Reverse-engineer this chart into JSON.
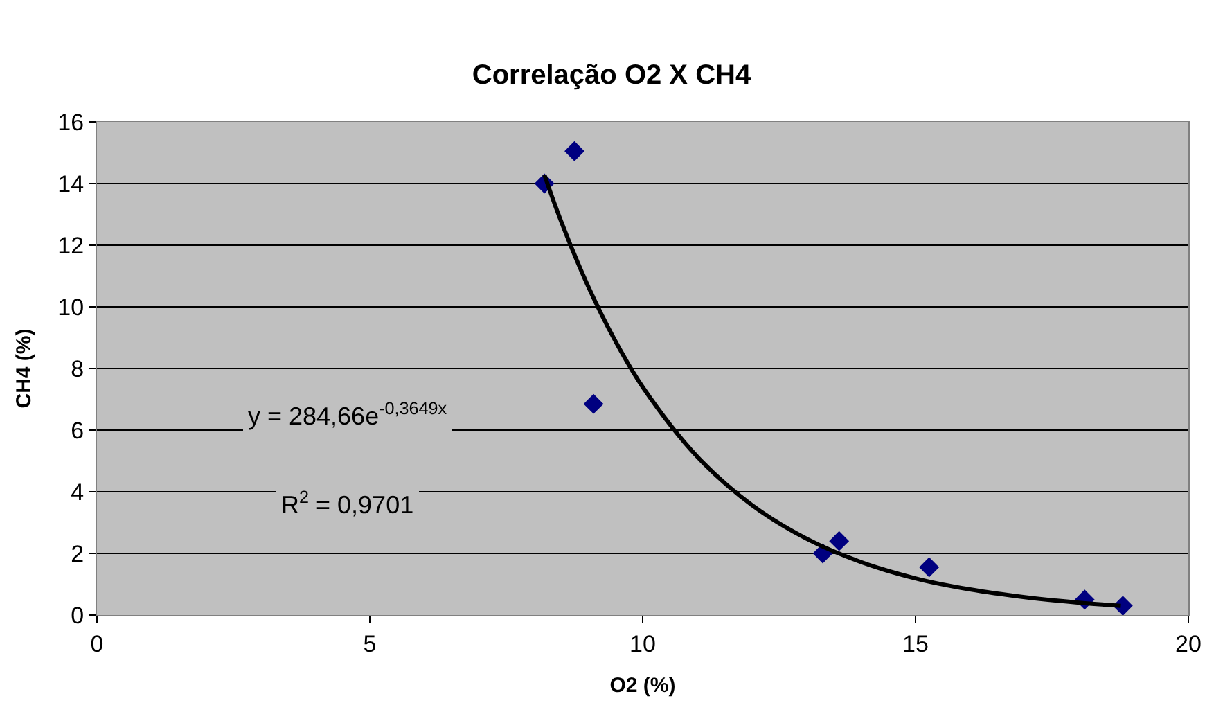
{
  "chart_data": {
    "type": "scatter",
    "title": "Correlação O2 X CH4",
    "xlabel": "O2 (%)",
    "ylabel": "CH4 (%)",
    "xlim": [
      0,
      20
    ],
    "xticks": [
      0,
      5,
      10,
      15,
      20
    ],
    "ylim": [
      0,
      16
    ],
    "yticks": [
      0,
      2,
      4,
      6,
      8,
      10,
      12,
      14,
      16
    ],
    "grid": "y",
    "marker": "diamond",
    "series": [
      {
        "color": "#000080",
        "x": [
          8.2,
          8.75,
          9.1,
          13.3,
          13.6,
          15.25,
          18.1,
          18.8
        ],
        "values": [
          14.0,
          15.05,
          6.85,
          2.0,
          2.4,
          1.55,
          0.5,
          0.3
        ]
      },
      {
        "type": "line",
        "color": "#000000",
        "line_style": "solid",
        "marker": "none",
        "x": [
          8.2,
          8.5,
          9,
          9.5,
          10,
          11,
          12,
          13,
          14,
          15,
          16,
          17,
          18,
          18.75
        ],
        "values": [
          14.28,
          12.8,
          10.67,
          8.89,
          7.4,
          5.14,
          3.57,
          2.48,
          1.72,
          1.19,
          0.83,
          0.58,
          0.4,
          0.3
        ]
      }
    ],
    "annotations": [
      "y = 284,66e$^{-0,3649x}$",
      "R$^{2}$ = 0,9701"
    ]
  }
}
